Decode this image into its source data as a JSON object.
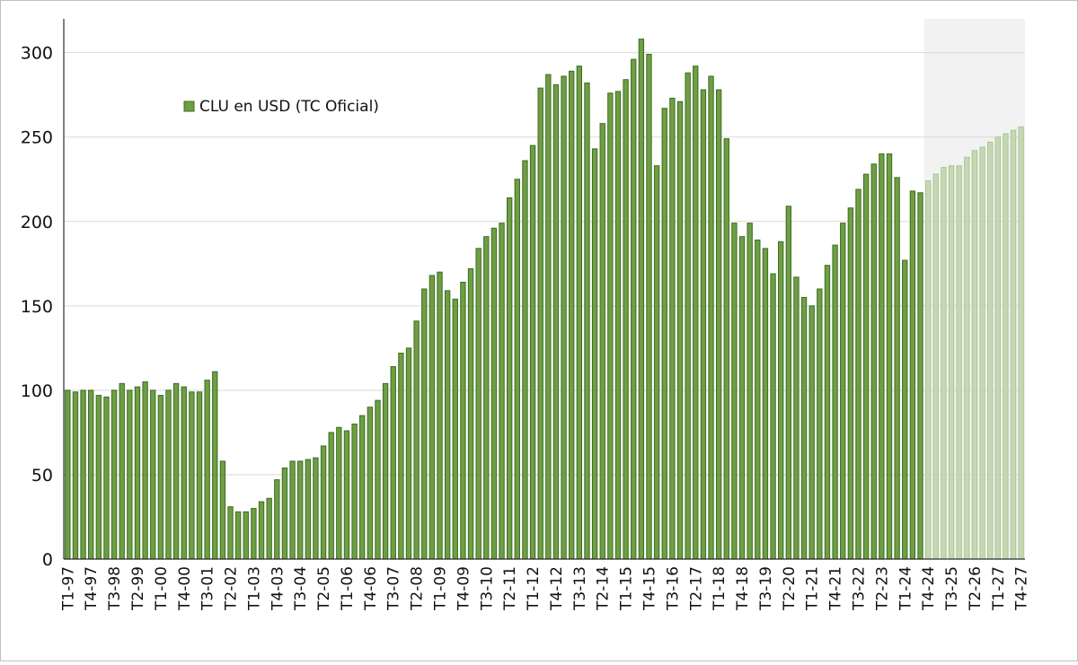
{
  "chart_data": {
    "type": "bar",
    "legend": {
      "label": "CLU en USD (TC Oficial)",
      "position": "top-left"
    },
    "ylim": [
      0,
      320
    ],
    "yticks": [
      0,
      50,
      100,
      150,
      200,
      250,
      300
    ],
    "grid": true,
    "colors": {
      "bar_fill": "#6e9e45",
      "bar_stroke": "#3e6d1f",
      "projection_fill": "#c6d8b3",
      "projection_stroke": "#adc593",
      "projection_bg": "#f2f2f2",
      "grid": "#d9d9d9"
    },
    "projection_start_index": 111,
    "categories": [
      "T1-97",
      "T2-97",
      "T3-97",
      "T4-97",
      "T1-98",
      "T2-98",
      "T3-98",
      "T4-98",
      "T1-99",
      "T2-99",
      "T3-99",
      "T4-99",
      "T1-00",
      "T2-00",
      "T3-00",
      "T4-00",
      "T1-01",
      "T2-01",
      "T3-01",
      "T4-01",
      "T1-02",
      "T2-02",
      "T3-02",
      "T4-02",
      "T1-03",
      "T2-03",
      "T3-03",
      "T4-03",
      "T1-04",
      "T2-04",
      "T3-04",
      "T4-04",
      "T1-05",
      "T2-05",
      "T3-05",
      "T4-05",
      "T1-06",
      "T2-06",
      "T3-06",
      "T4-06",
      "T1-07",
      "T2-07",
      "T3-07",
      "T4-07",
      "T1-08",
      "T2-08",
      "T3-08",
      "T4-08",
      "T1-09",
      "T2-09",
      "T3-09",
      "T4-09",
      "T1-10",
      "T2-10",
      "T3-10",
      "T4-10",
      "T1-11",
      "T2-11",
      "T3-11",
      "T4-11",
      "T1-12",
      "T2-12",
      "T3-12",
      "T4-12",
      "T1-13",
      "T2-13",
      "T3-13",
      "T4-13",
      "T1-14",
      "T2-14",
      "T3-14",
      "T4-14",
      "T1-15",
      "T2-15",
      "T3-15",
      "T4-15",
      "T1-16",
      "T2-16",
      "T3-16",
      "T4-16",
      "T1-17",
      "T2-17",
      "T3-17",
      "T4-17",
      "T1-18",
      "T2-18",
      "T3-18",
      "T4-18",
      "T1-19",
      "T2-19",
      "T3-19",
      "T4-19",
      "T1-20",
      "T2-20",
      "T3-20",
      "T4-20",
      "T1-21",
      "T2-21",
      "T3-21",
      "T4-21",
      "T1-22",
      "T2-22",
      "T3-22",
      "T4-22",
      "T1-23",
      "T2-23",
      "T3-23",
      "T4-23",
      "T1-24",
      "T2-24",
      "T3-24",
      "T4-24",
      "T1-25",
      "T2-25",
      "T3-25",
      "T4-25",
      "T1-26",
      "T2-26",
      "T3-26",
      "T4-26",
      "T1-27",
      "T2-27",
      "T3-27",
      "T4-27"
    ],
    "values": [
      100,
      99,
      100,
      100,
      97,
      96,
      100,
      104,
      100,
      102,
      105,
      100,
      97,
      100,
      104,
      102,
      99,
      99,
      106,
      111,
      58,
      31,
      28,
      28,
      30,
      34,
      36,
      47,
      54,
      58,
      58,
      59,
      60,
      67,
      75,
      78,
      76,
      80,
      85,
      90,
      94,
      104,
      114,
      122,
      125,
      141,
      160,
      168,
      170,
      159,
      154,
      164,
      172,
      184,
      191,
      196,
      199,
      214,
      225,
      236,
      245,
      279,
      287,
      281,
      286,
      289,
      292,
      282,
      243,
      258,
      276,
      277,
      284,
      296,
      308,
      299,
      233,
      267,
      273,
      271,
      288,
      292,
      278,
      286,
      278,
      249,
      199,
      191,
      199,
      189,
      184,
      169,
      188,
      209,
      167,
      155,
      150,
      160,
      174,
      186,
      199,
      208,
      219,
      228,
      234,
      240,
      240,
      226,
      177,
      218,
      217,
      224,
      228,
      232,
      233,
      233,
      238,
      242,
      244,
      247,
      250,
      252,
      254,
      256
    ]
  }
}
